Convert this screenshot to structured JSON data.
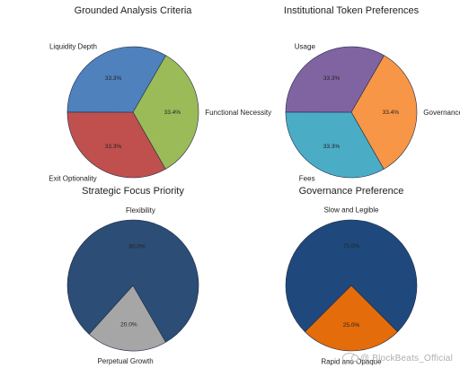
{
  "chart_data": [
    {
      "type": "pie",
      "title": "Grounded Analysis Criteria",
      "categories": [
        "Functional Necessity",
        "Exit Optionality",
        "Liquidity Depth"
      ],
      "values": [
        33.4,
        33.3,
        33.3
      ],
      "value_labels": [
        "33.4%",
        "33.3%",
        "33.3%"
      ],
      "colors": [
        "#9bbb59",
        "#c0504d",
        "#4f81bd"
      ],
      "start_angle_deg": 60
    },
    {
      "type": "pie",
      "title": "Institutional Token Preferences",
      "categories": [
        "Governance Roles",
        "Fees",
        "Usage"
      ],
      "values": [
        33.4,
        33.3,
        33.3
      ],
      "value_labels": [
        "33.4%",
        "33.3%",
        "33.3%"
      ],
      "colors": [
        "#f79646",
        "#4bacc6",
        "#8064a2"
      ],
      "start_angle_deg": 60
    },
    {
      "type": "pie",
      "title": "Strategic Focus Priority",
      "categories": [
        "Perpetual Growth",
        "Flexibility"
      ],
      "values": [
        20.0,
        80.0
      ],
      "value_labels": [
        "20.0%",
        "80.0%"
      ],
      "colors": [
        "#a6a6a6",
        "#2c4d75"
      ],
      "start_angle_deg": -60
    },
    {
      "type": "pie",
      "title": "Governance Preference",
      "categories": [
        "Rapid and Opaque",
        "Slow and Legible"
      ],
      "values": [
        25.0,
        75.0
      ],
      "value_labels": [
        "25.0%",
        "75.0%"
      ],
      "colors": [
        "#e46c0a",
        "#1f497d"
      ],
      "start_angle_deg": -45
    }
  ],
  "watermark": {
    "text": "@ BlockBeats_Official",
    "icon": "watermark-logo-icon"
  }
}
